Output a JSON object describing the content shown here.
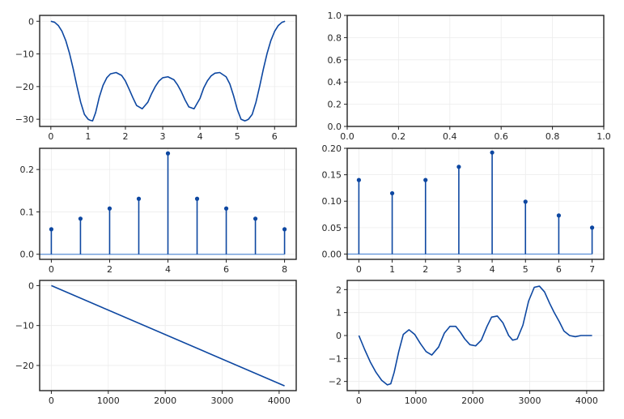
{
  "chart_data": [
    {
      "type": "line",
      "title": "",
      "xlabel": "",
      "ylabel": "",
      "xlim": [
        -0.3,
        6.58
      ],
      "ylim": [
        -32.2,
        1.8
      ],
      "xticks": [
        0,
        1,
        2,
        3,
        4,
        5,
        6
      ],
      "yticks": [
        0,
        -10,
        -20,
        -30
      ],
      "grid": true,
      "series": [
        {
          "color": "#0d47a1",
          "x": [
            0,
            0.1,
            0.2,
            0.3,
            0.4,
            0.5,
            0.6,
            0.7,
            0.8,
            0.9,
            1.0,
            1.05,
            1.12,
            1.2,
            1.3,
            1.4,
            1.5,
            1.6,
            1.75,
            1.9,
            2.0,
            2.1,
            2.2,
            2.3,
            2.45,
            2.6,
            2.7,
            2.8,
            2.9,
            3.0,
            3.14,
            3.3,
            3.4,
            3.5,
            3.6,
            3.7,
            3.84,
            4.0,
            4.1,
            4.2,
            4.3,
            4.4,
            4.53,
            4.7,
            4.8,
            4.9,
            5.0,
            5.1,
            5.2,
            5.25,
            5.3,
            5.4,
            5.5,
            5.6,
            5.7,
            5.8,
            5.9,
            6.0,
            6.1,
            6.2,
            6.28
          ],
          "y": [
            0,
            -0.3,
            -1.3,
            -3.1,
            -5.9,
            -9.8,
            -14.6,
            -19.9,
            -24.8,
            -28.5,
            -30.0,
            -30.3,
            -30.5,
            -28.0,
            -23.2,
            -19.6,
            -17.3,
            -16.1,
            -15.7,
            -16.6,
            -18.3,
            -20.8,
            -23.4,
            -25.8,
            -26.8,
            -24.8,
            -22.2,
            -20.0,
            -18.3,
            -17.3,
            -17.0,
            -17.9,
            -19.5,
            -21.6,
            -24.1,
            -26.2,
            -26.8,
            -23.6,
            -20.4,
            -18.2,
            -16.7,
            -15.9,
            -15.7,
            -17.0,
            -19.2,
            -22.8,
            -27.0,
            -30.0,
            -30.5,
            -30.3,
            -30.0,
            -28.5,
            -24.8,
            -19.9,
            -14.6,
            -9.8,
            -5.9,
            -3.1,
            -1.3,
            -0.3,
            0
          ]
        }
      ]
    },
    {
      "type": "line",
      "title": "",
      "xlabel": "",
      "ylabel": "",
      "xlim": [
        0,
        1
      ],
      "ylim": [
        0,
        1
      ],
      "xticks": [
        0.0,
        0.2,
        0.4,
        0.6,
        0.8,
        1.0
      ],
      "yticks": [
        0.0,
        0.2,
        0.4,
        0.6,
        0.8,
        1.0
      ],
      "grid": true,
      "series": []
    },
    {
      "type": "stem",
      "title": "",
      "xlabel": "",
      "ylabel": "",
      "xlim": [
        -0.4,
        8.4
      ],
      "ylim": [
        -0.012,
        0.25
      ],
      "xticks": [
        0,
        2,
        4,
        6,
        8
      ],
      "yticks": [
        0.0,
        0.1,
        0.2
      ],
      "grid": true,
      "series": [
        {
          "color": "#0d47a1",
          "baseline_color": "#5a8fd6",
          "x": [
            0,
            1,
            2,
            3,
            4,
            5,
            6,
            7,
            8
          ],
          "y": [
            0.059,
            0.084,
            0.108,
            0.131,
            0.238,
            0.131,
            0.108,
            0.084,
            0.059
          ]
        }
      ]
    },
    {
      "type": "stem",
      "title": "",
      "xlabel": "",
      "ylabel": "",
      "xlim": [
        -0.35,
        7.35
      ],
      "ylim": [
        -0.01,
        0.2
      ],
      "xticks": [
        0,
        1,
        2,
        3,
        4,
        5,
        6,
        7
      ],
      "yticks": [
        0.0,
        0.05,
        0.1,
        0.15,
        0.2
      ],
      "grid": true,
      "series": [
        {
          "color": "#0d47a1",
          "baseline_color": "#5a8fd6",
          "x": [
            0,
            1,
            2,
            3,
            4,
            5,
            6,
            7
          ],
          "y": [
            0.14,
            0.115,
            0.14,
            0.165,
            0.192,
            0.099,
            0.073,
            0.05
          ]
        }
      ]
    },
    {
      "type": "line",
      "title": "",
      "xlabel": "",
      "ylabel": "",
      "xlim": [
        -205,
        4300
      ],
      "ylim": [
        -26.3,
        1.3
      ],
      "xticks": [
        0,
        1000,
        2000,
        3000,
        4000
      ],
      "yticks": [
        0,
        -10,
        -20
      ],
      "grid": true,
      "series": [
        {
          "color": "#0d47a1",
          "x": [
            0,
            4095
          ],
          "y": [
            0,
            -25.1
          ]
        }
      ]
    },
    {
      "type": "line",
      "title": "",
      "xlabel": "",
      "ylabel": "",
      "xlim": [
        -205,
        4300
      ],
      "ylim": [
        -2.4,
        2.4
      ],
      "xticks": [
        0,
        1000,
        2000,
        3000,
        4000
      ],
      "yticks": [
        2,
        1,
        0,
        -1,
        -2
      ],
      "grid": true,
      "series": [
        {
          "color": "#0d47a1",
          "x": [
            0,
            100,
            200,
            300,
            400,
            500,
            560,
            620,
            700,
            780,
            880,
            980,
            1080,
            1180,
            1280,
            1400,
            1500,
            1600,
            1700,
            1780,
            1860,
            1950,
            2050,
            2150,
            2250,
            2330,
            2430,
            2530,
            2630,
            2700,
            2780,
            2880,
            2980,
            3080,
            3170,
            3260,
            3350,
            3430,
            3520,
            3600,
            3700,
            3800,
            3900,
            4000,
            4095
          ],
          "y": [
            0,
            -0.6,
            -1.15,
            -1.6,
            -1.95,
            -2.15,
            -2.1,
            -1.6,
            -0.7,
            0.05,
            0.25,
            0.05,
            -0.35,
            -0.7,
            -0.85,
            -0.5,
            0.1,
            0.4,
            0.4,
            0.15,
            -0.15,
            -0.4,
            -0.45,
            -0.2,
            0.4,
            0.8,
            0.85,
            0.55,
            0.0,
            -0.2,
            -0.15,
            0.45,
            1.5,
            2.1,
            2.15,
            1.9,
            1.4,
            1.0,
            0.6,
            0.2,
            0.0,
            -0.05,
            0,
            0,
            0
          ]
        }
      ]
    }
  ]
}
